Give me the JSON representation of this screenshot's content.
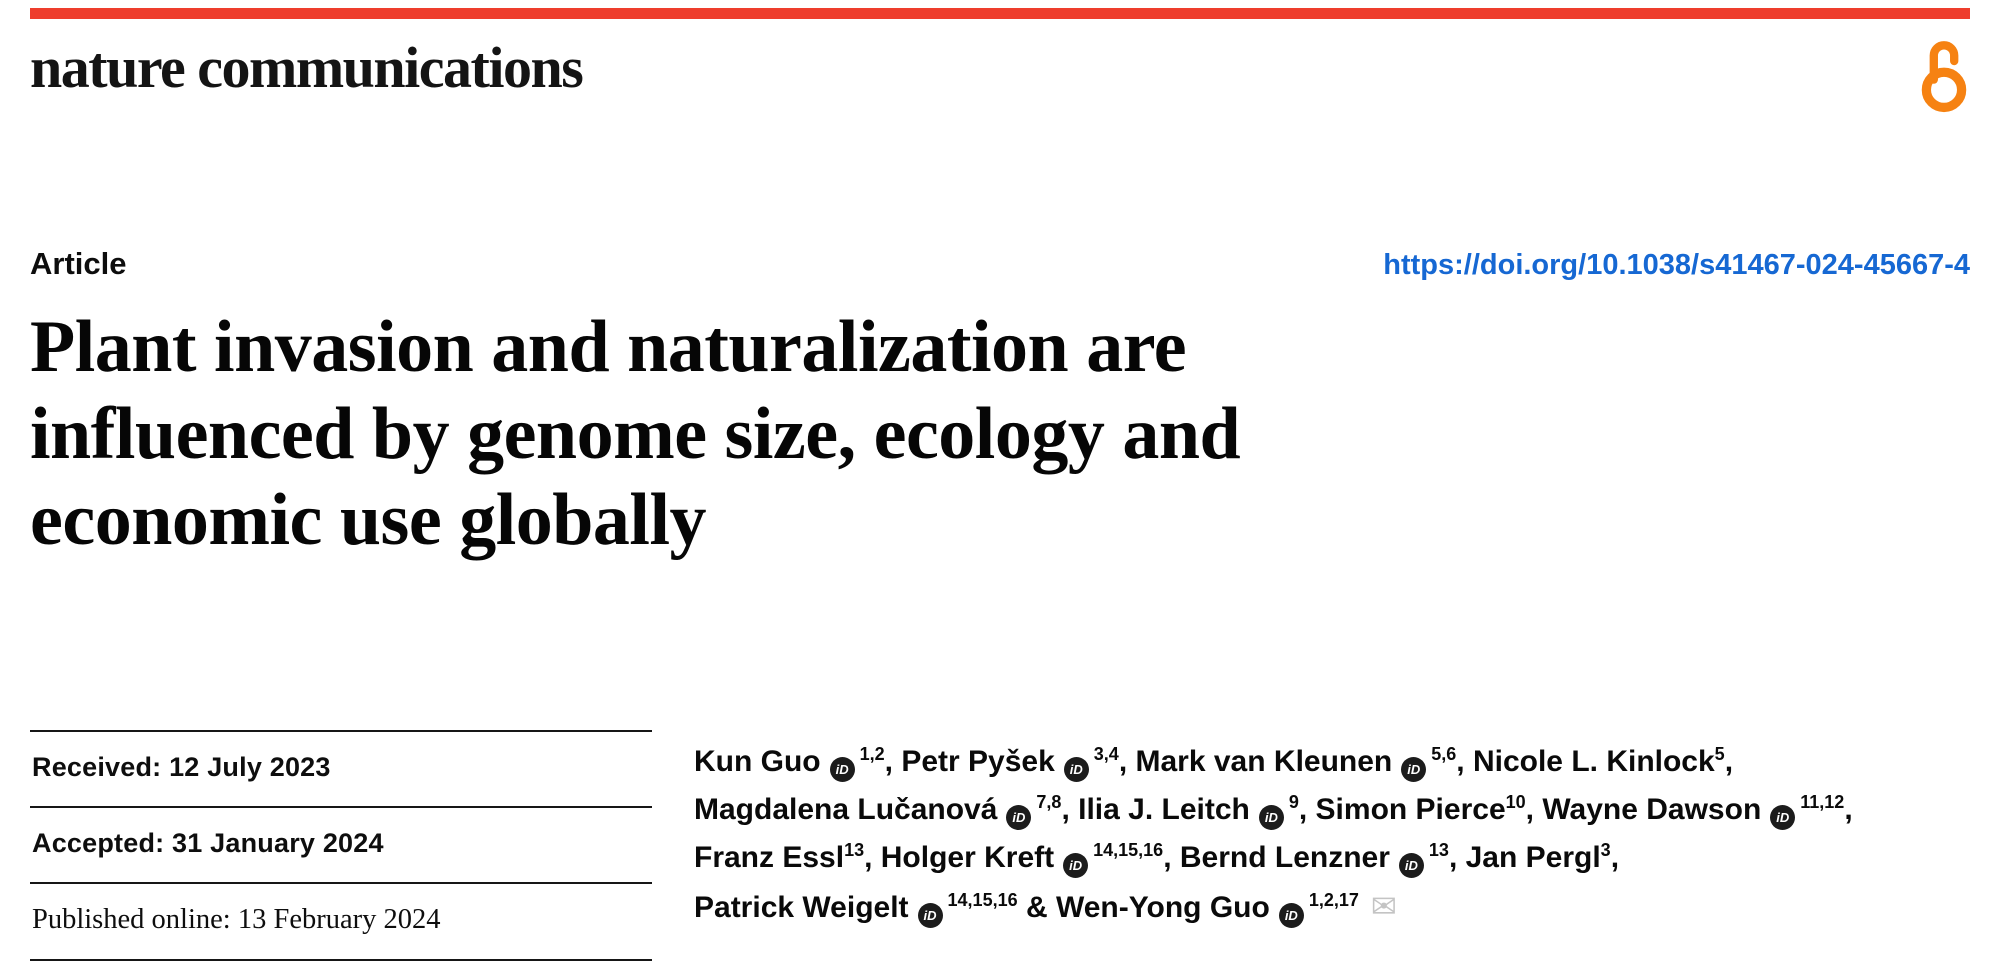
{
  "header": {
    "journal": "nature communications"
  },
  "icons": {
    "open_access": "open-access-padlock",
    "orcid_text": "iD",
    "envelope": "✉"
  },
  "article": {
    "type_label": "Article",
    "doi": "https://doi.org/10.1038/s41467-024-45667-4",
    "title": "Plant invasion and naturalization are influenced by genome size, ecology and economic use globally",
    "title_lines": [
      "Plant invasion and naturalization are",
      "influenced by genome size, ecology and",
      "economic use globally"
    ]
  },
  "dates": [
    {
      "label": "Received",
      "value": "12 July 2023"
    },
    {
      "label": "Accepted",
      "value": "31 January 2024"
    },
    {
      "label": "Published online",
      "value": "13 February 2024"
    }
  ],
  "authors": [
    {
      "name": "Kun Guo",
      "orcid": true,
      "sup": "1,2",
      "sep": ", "
    },
    {
      "name": "Petr Pyšek",
      "orcid": true,
      "sup": "3,4",
      "sep": ", "
    },
    {
      "name": "Mark van Kleunen",
      "orcid": true,
      "sup": "5,6",
      "sep": ", "
    },
    {
      "name": "Nicole L. Kinlock",
      "orcid": false,
      "sup": "5",
      "sep": ", ",
      "break_after": true
    },
    {
      "name": "Magdalena Lučanová",
      "orcid": true,
      "sup": "7,8",
      "sep": ", "
    },
    {
      "name": "Ilia J. Leitch",
      "orcid": true,
      "sup": "9",
      "sep": ", "
    },
    {
      "name": "Simon Pierce",
      "orcid": false,
      "sup": "10",
      "sep": ", "
    },
    {
      "name": "Wayne Dawson",
      "orcid": true,
      "sup": "11,12",
      "sep": ", ",
      "break_after": true
    },
    {
      "name": "Franz Essl",
      "orcid": false,
      "sup": "13",
      "sep": ", "
    },
    {
      "name": "Holger Kreft",
      "orcid": true,
      "sup": "14,15,16",
      "sep": ", "
    },
    {
      "name": "Bernd Lenzner",
      "orcid": true,
      "sup": "13",
      "sep": ", "
    },
    {
      "name": "Jan Pergl",
      "orcid": false,
      "sup": "3",
      "sep": ", ",
      "break_after": true
    },
    {
      "name": "Patrick Weigelt",
      "orcid": true,
      "sup": "14,15,16",
      "sep": " & "
    },
    {
      "name": "Wen-Yong Guo",
      "orcid": true,
      "sup": "1,2,17",
      "corresponding": true
    }
  ],
  "colors": {
    "brand_red": "#ee3d2d",
    "link_blue": "#1668d3",
    "open_access_orange": "#f68212"
  }
}
